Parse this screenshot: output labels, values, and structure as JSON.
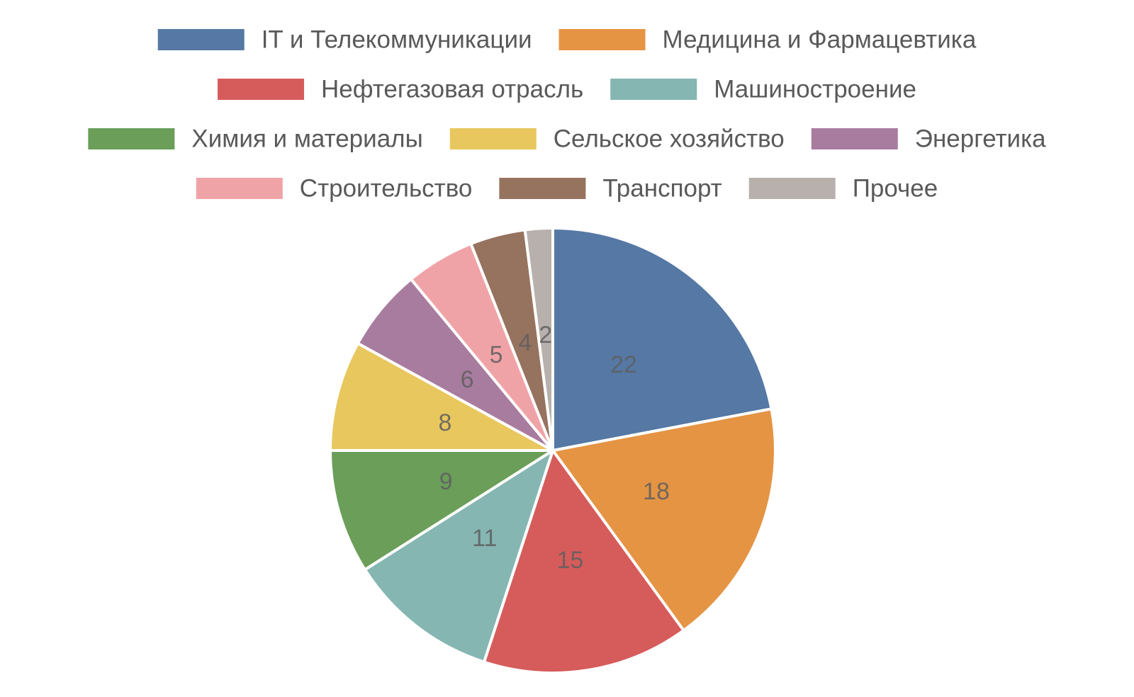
{
  "chart_data": {
    "type": "pie",
    "title": "",
    "legend_position": "top",
    "categories": [
      "IT и Телекоммуникации",
      "Медицина и Фармацевтика",
      "Нефтегазовая отрасль",
      "Машиностроение",
      "Химия и материалы",
      "Сельское хозяйство",
      "Энергетика",
      "Строительство",
      "Транспорт",
      "Прочее"
    ],
    "values": [
      22,
      18,
      15,
      11,
      9,
      8,
      6,
      5,
      4,
      2
    ],
    "colors": [
      "#5578a4",
      "#e59444",
      "#d65c5b",
      "#85b6b2",
      "#6a9e59",
      "#e8c75e",
      "#a87c9f",
      "#f0a3a7",
      "#96735f",
      "#b8b0ac"
    ],
    "data_labels": true
  }
}
